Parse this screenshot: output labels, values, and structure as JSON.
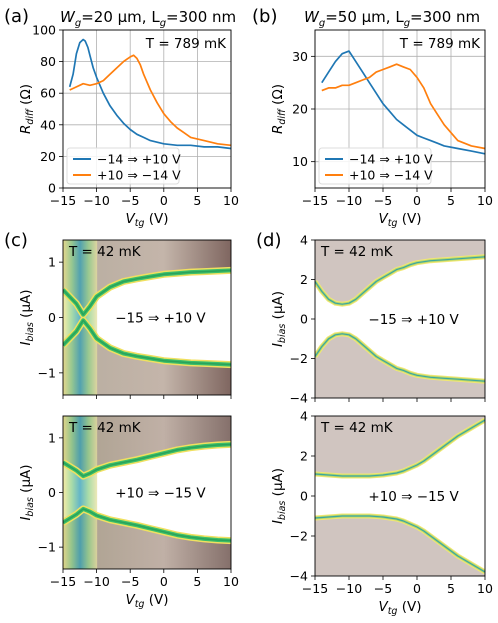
{
  "panels": {
    "a": {
      "letter": "(a)",
      "title_prefix": "W",
      "title_sub": "g",
      "title_mid": "=20 μm, L",
      "title_sub2": "g",
      "title_suffix": "=300 nm"
    },
    "b": {
      "letter": "(b)",
      "title_prefix": "W",
      "title_sub": "g",
      "title_mid": "=50 μm, L",
      "title_sub2": "g",
      "title_suffix": "=300 nm"
    },
    "c": {
      "letter": "(c)"
    },
    "d": {
      "letter": "(d)"
    }
  },
  "colors": {
    "sweep_up": "#1f77b4",
    "sweep_down": "#ff7f0e",
    "grid": "#b0b0b0",
    "map_bg_c": "#ffffff",
    "map_bg_d": "#d9cfcb"
  },
  "chart_data": [
    {
      "id": "a",
      "type": "line",
      "annotation": "T = 789 mK",
      "xlabel": "V",
      "xlabel_sub": "tg",
      "xlabel_unit": " (V)",
      "ylabel": "R",
      "ylabel_sub": "diff",
      "ylabel_unit": " (Ω)",
      "xlim": [
        -15,
        10
      ],
      "ylim": [
        0,
        100
      ],
      "xticks": [
        -15,
        -10,
        -5,
        0,
        5,
        10
      ],
      "yticks": [
        0,
        20,
        40,
        60,
        80,
        100
      ],
      "grid": true,
      "legend": "bottom-left",
      "series": [
        {
          "name": "−14 ⇒ +10 V",
          "color": "#1f77b4",
          "x": [
            -14,
            -13.5,
            -13,
            -12.5,
            -12,
            -11.7,
            -11.3,
            -11,
            -10.5,
            -10,
            -9,
            -8,
            -7,
            -6,
            -5,
            -4,
            -3,
            -2,
            -1,
            0,
            2,
            4,
            6,
            8,
            10
          ],
          "y": [
            64,
            72,
            85,
            92,
            94,
            93,
            89,
            84,
            76,
            70,
            60,
            52,
            46,
            41,
            37,
            34,
            32,
            30,
            29,
            28,
            27,
            27,
            26,
            26,
            25
          ]
        },
        {
          "name": "+10 ⇒ −14 V",
          "color": "#ff7f0e",
          "x": [
            -14,
            -13,
            -12,
            -11,
            -10,
            -9,
            -8,
            -7,
            -6,
            -5,
            -4.5,
            -4,
            -3.5,
            -3,
            -2,
            -1,
            0,
            1,
            2,
            3,
            4,
            6,
            8,
            10
          ],
          "y": [
            62,
            64,
            66,
            65,
            66,
            68,
            72,
            76,
            80,
            83,
            84,
            82,
            78,
            72,
            62,
            54,
            47,
            42,
            38,
            35,
            32,
            30,
            28,
            27
          ]
        }
      ]
    },
    {
      "id": "b",
      "type": "line",
      "annotation": "T = 789 mK",
      "xlabel": "V",
      "xlabel_sub": "tg",
      "xlabel_unit": " (V)",
      "ylabel": "R",
      "ylabel_sub": "diff",
      "ylabel_unit": " (Ω)",
      "xlim": [
        -15,
        10
      ],
      "ylim": [
        5,
        35
      ],
      "xticks": [
        -15,
        -10,
        -5,
        0,
        5,
        10
      ],
      "yticks": [
        10,
        20,
        30
      ],
      "grid": true,
      "legend": "bottom-left",
      "series": [
        {
          "name": "−14 ⇒ +10 V",
          "color": "#1f77b4",
          "x": [
            -14,
            -13,
            -12,
            -11,
            -10,
            -9.5,
            -9,
            -8,
            -7,
            -6,
            -5,
            -4,
            -3,
            -2,
            -1,
            0,
            1,
            2,
            3,
            4,
            6,
            8,
            10
          ],
          "y": [
            25,
            27,
            29,
            30.5,
            31,
            30,
            29,
            27,
            25,
            23,
            21,
            19.5,
            18,
            17,
            16,
            15,
            14.5,
            14,
            13.5,
            13,
            12.5,
            12,
            11.5
          ]
        },
        {
          "name": "+10 ⇒ −14 V",
          "color": "#ff7f0e",
          "x": [
            -14,
            -13,
            -12,
            -11,
            -10,
            -9,
            -8,
            -7,
            -6,
            -5,
            -4,
            -3,
            -2,
            -1,
            0,
            1,
            2,
            3,
            4,
            5,
            6,
            8,
            10
          ],
          "y": [
            23.5,
            24,
            24,
            24.5,
            24.5,
            25,
            25.5,
            26,
            27,
            27.5,
            28,
            28.5,
            28,
            27.5,
            26,
            24,
            21,
            19,
            17,
            15.5,
            14,
            13,
            12.5
          ]
        }
      ]
    },
    {
      "id": "c-top",
      "type": "heatmap",
      "annotation": "T = 42 mK",
      "sweep": "−15 ⇒ +10 V",
      "xlim": [
        -15,
        10
      ],
      "ylim": [
        -1.4,
        1.4
      ],
      "xticks": [
        -15,
        -10,
        -5,
        0,
        5,
        10
      ],
      "yticks": [
        -1,
        0,
        1
      ],
      "ylabel": "I",
      "ylabel_sub": "bias",
      "ylabel_unit": " (μA)",
      "switching_current": {
        "x": [
          -15,
          -13,
          -12,
          -11,
          -10,
          -8,
          -6,
          -4,
          -2,
          0,
          2,
          4,
          6,
          8,
          10
        ],
        "y": [
          0.5,
          0.25,
          0.05,
          0.2,
          0.38,
          0.55,
          0.65,
          0.7,
          0.74,
          0.78,
          0.8,
          0.82,
          0.83,
          0.84,
          0.85
        ]
      },
      "dip_position": -12
    },
    {
      "id": "c-bottom",
      "type": "heatmap",
      "annotation": "T = 42 mK",
      "sweep": "+10 ⇒ −15 V",
      "xlim": [
        -15,
        10
      ],
      "ylim": [
        -1.4,
        1.4
      ],
      "xticks": [
        -15,
        -10,
        -5,
        0,
        5,
        10
      ],
      "yticks": [
        -1,
        0,
        1
      ],
      "xlabel": "V",
      "xlabel_sub": "tg",
      "xlabel_unit": " (V)",
      "ylabel": "I",
      "ylabel_sub": "bias",
      "ylabel_unit": " (μA)",
      "switching_current": {
        "x": [
          -15,
          -13,
          -12,
          -11,
          -10,
          -8,
          -6,
          -4,
          -2,
          0,
          2,
          4,
          6,
          8,
          10
        ],
        "y": [
          0.55,
          0.4,
          0.3,
          0.35,
          0.42,
          0.5,
          0.55,
          0.6,
          0.66,
          0.72,
          0.78,
          0.82,
          0.85,
          0.87,
          0.88
        ]
      },
      "dip_position": -12
    },
    {
      "id": "d-top",
      "type": "heatmap",
      "annotation": "T = 42 mK",
      "sweep": "−15 ⇒ +10 V",
      "xlim": [
        -15,
        10
      ],
      "ylim": [
        -4,
        4
      ],
      "xticks": [
        -15,
        -10,
        -5,
        0,
        5,
        10
      ],
      "yticks": [
        -4,
        -2,
        0,
        2,
        4
      ],
      "ylabel": "I",
      "ylabel_sub": "bias",
      "ylabel_unit": " (μA)",
      "switching_current": {
        "x": [
          -15,
          -14,
          -13,
          -12,
          -11,
          -10,
          -9,
          -8,
          -7,
          -6,
          -5,
          -4,
          -3,
          -2,
          -1,
          0,
          2,
          4,
          6,
          8,
          10
        ],
        "y": [
          1.9,
          1.4,
          1.0,
          0.8,
          0.75,
          0.8,
          1.0,
          1.3,
          1.6,
          1.9,
          2.1,
          2.3,
          2.5,
          2.6,
          2.75,
          2.85,
          2.95,
          3.0,
          3.05,
          3.1,
          3.15
        ]
      }
    },
    {
      "id": "d-bottom",
      "type": "heatmap",
      "annotation": "T = 42 mK",
      "sweep": "+10 ⇒ −15 V",
      "xlim": [
        -15,
        10
      ],
      "ylim": [
        -4,
        4
      ],
      "xticks": [
        -15,
        -10,
        -5,
        0,
        5,
        10
      ],
      "yticks": [
        -4,
        -2,
        0,
        2,
        4
      ],
      "xlabel": "V",
      "xlabel_sub": "tg",
      "xlabel_unit": " (V)",
      "ylabel": "I",
      "ylabel_sub": "bias",
      "ylabel_unit": " (μA)",
      "switching_current": {
        "x": [
          -15,
          -13,
          -11,
          -9,
          -7,
          -5,
          -3,
          -2,
          -1,
          0,
          1,
          2,
          3,
          4,
          5,
          6,
          7,
          8,
          9,
          10
        ],
        "y": [
          1.1,
          1.05,
          1.0,
          1.0,
          1.0,
          1.05,
          1.15,
          1.25,
          1.4,
          1.55,
          1.75,
          2.0,
          2.25,
          2.5,
          2.75,
          3.0,
          3.2,
          3.4,
          3.6,
          3.8
        ]
      }
    }
  ]
}
